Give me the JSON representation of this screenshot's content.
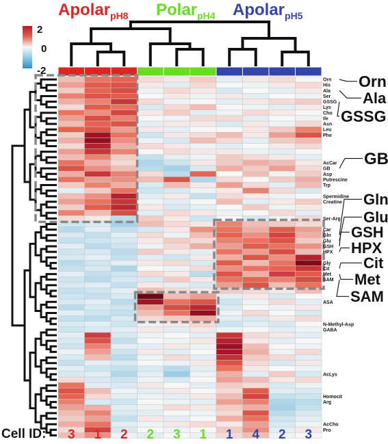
{
  "chart_data": {
    "type": "heatmap",
    "group_titles": [
      {
        "main": "Apolar",
        "sub": "pH8",
        "color": "#e02424"
      },
      {
        "main": "Polar",
        "sub": "pH4",
        "color": "#66dd22"
      },
      {
        "main": "Apolar",
        "sub": "pH5",
        "color": "#3344aa"
      }
    ],
    "column_group_index": [
      0,
      0,
      0,
      1,
      1,
      1,
      2,
      2,
      2,
      2
    ],
    "colorbar": {
      "ticks": [
        "2",
        "0",
        "-2"
      ],
      "max": 2,
      "min": -2
    },
    "cell_id_label": "Cell ID:",
    "cell_ids": [
      "3",
      "1",
      "2",
      "2",
      "3",
      "1",
      "1",
      "4",
      "2",
      "3"
    ],
    "row_labels": [
      {
        "row": 0,
        "text": "Orn"
      },
      {
        "row": 1,
        "text": "His"
      },
      {
        "row": 2,
        "text": "Ala"
      },
      {
        "row": 3,
        "text": "Ser"
      },
      {
        "row": 4,
        "text": "GSSG"
      },
      {
        "row": 5,
        "text": "Lys"
      },
      {
        "row": 6,
        "text": "Cho"
      },
      {
        "row": 7,
        "text": "Ile"
      },
      {
        "row": 8,
        "text": "Asn"
      },
      {
        "row": 9,
        "text": "Leu"
      },
      {
        "row": 10,
        "text": "Phe"
      },
      {
        "row": 15,
        "text": "AcCar"
      },
      {
        "row": 16,
        "text": "GB"
      },
      {
        "row": 17,
        "text": "Asp"
      },
      {
        "row": 18,
        "text": "Putrescine"
      },
      {
        "row": 19,
        "text": "Trp"
      },
      {
        "row": 21,
        "text": "Spermidine"
      },
      {
        "row": 22,
        "text": "Creatine"
      },
      {
        "row": 25,
        "text": "Ser-Arg"
      },
      {
        "row": 27,
        "text": "Car"
      },
      {
        "row": 28,
        "text": "Gln"
      },
      {
        "row": 29,
        "text": "Glu"
      },
      {
        "row": 30,
        "text": "GSH"
      },
      {
        "row": 31,
        "text": "HPX"
      },
      {
        "row": 33,
        "text": "Gly"
      },
      {
        "row": 34,
        "text": "Cit"
      },
      {
        "row": 35,
        "text": "Met"
      },
      {
        "row": 36,
        "text": "SAM"
      },
      {
        "row": 40,
        "text": "ASA"
      },
      {
        "row": 44,
        "text": "N-Methyl-Asp"
      },
      {
        "row": 45,
        "text": "GABA"
      },
      {
        "row": 53,
        "text": "AcLys"
      },
      {
        "row": 57,
        "text": "Homocit"
      },
      {
        "row": 58,
        "text": "Arg"
      },
      {
        "row": 62,
        "text": "AcCho"
      },
      {
        "row": 63,
        "text": "Pro"
      }
    ],
    "callouts": [
      {
        "text": "Orn",
        "row": 0
      },
      {
        "text": "Ala",
        "row": 2
      },
      {
        "text": "GSSG",
        "row": 4
      },
      {
        "text": "GB",
        "row": 16
      },
      {
        "text": "Gln",
        "row": 28
      },
      {
        "text": "Glu",
        "row": 29
      },
      {
        "text": "GSH",
        "row": 30
      },
      {
        "text": "HPX",
        "row": 31
      },
      {
        "text": "Cit",
        "row": 34
      },
      {
        "text": "Met",
        "row": 35
      },
      {
        "text": "SAM",
        "row": 36
      }
    ],
    "highlight_boxes": [
      {
        "rows": [
          0,
          25
        ],
        "cols": [
          0,
          2
        ]
      },
      {
        "rows": [
          26,
          37
        ],
        "cols": [
          6,
          9
        ]
      },
      {
        "rows": [
          39,
          43
        ],
        "cols": [
          3,
          5
        ]
      }
    ],
    "values": [
      [
        0.4,
        0.9,
        1.0,
        0.2,
        0.1,
        0.3,
        -0.2,
        0.1,
        0.2,
        0.0
      ],
      [
        0.6,
        1.1,
        1.2,
        0.1,
        -0.2,
        0.2,
        0.0,
        -0.1,
        0.1,
        0.2
      ],
      [
        0.3,
        1.0,
        1.3,
        -0.1,
        0.2,
        0.1,
        -0.3,
        0.0,
        -0.2,
        0.1
      ],
      [
        0.8,
        1.2,
        1.1,
        0.0,
        0.1,
        -0.1,
        0.1,
        -0.2,
        0.0,
        -0.1
      ],
      [
        0.5,
        0.8,
        1.6,
        0.2,
        -0.1,
        0.0,
        -0.2,
        0.1,
        0.2,
        0.3
      ],
      [
        0.2,
        1.1,
        0.9,
        -0.3,
        0.2,
        0.4,
        0.0,
        -0.1,
        -0.2,
        0.1
      ],
      [
        0.9,
        0.7,
        1.4,
        0.1,
        0.3,
        -0.2,
        -0.1,
        0.2,
        0.1,
        0.0
      ],
      [
        0.6,
        1.3,
        0.8,
        0.0,
        -0.1,
        0.2,
        0.2,
        -0.2,
        0.0,
        -0.1
      ],
      [
        0.4,
        1.0,
        1.2,
        -0.2,
        0.1,
        0.1,
        -0.3,
        0.1,
        -0.1,
        0.2
      ],
      [
        1.0,
        1.2,
        0.6,
        0.1,
        -0.2,
        0.0,
        0.0,
        0.1,
        0.3,
        0.8
      ],
      [
        0.3,
        2.2,
        0.9,
        -0.4,
        0.1,
        0.2,
        0.4,
        0.1,
        0.6,
        1.2
      ],
      [
        0.5,
        2.4,
        0.7,
        -0.1,
        -0.3,
        0.4,
        0.2,
        -0.2,
        0.3,
        0.4
      ],
      [
        0.2,
        1.9,
        0.5,
        0.2,
        0.1,
        -0.1,
        -0.2,
        0.0,
        0.1,
        0.2
      ],
      [
        0.6,
        1.6,
        0.8,
        0.0,
        0.2,
        0.1,
        0.1,
        -0.1,
        -0.2,
        0.0
      ],
      [
        0.4,
        0.8,
        0.3,
        -0.5,
        -0.2,
        -0.1,
        0.3,
        0.2,
        0.1,
        -0.2
      ],
      [
        0.9,
        0.5,
        0.2,
        -0.7,
        -0.4,
        0.1,
        0.3,
        0.5,
        0.4,
        0.1
      ],
      [
        1.2,
        0.7,
        0.4,
        -0.6,
        -0.8,
        -0.3,
        0.5,
        0.3,
        0.6,
        0.2
      ],
      [
        0.5,
        1.6,
        0.8,
        0.2,
        -0.6,
        1.0,
        0.0,
        0.4,
        -0.1,
        0.3
      ],
      [
        0.9,
        0.6,
        0.7,
        0.4,
        1.2,
        -0.7,
        0.2,
        0.0,
        0.3,
        0.5
      ],
      [
        0.3,
        0.8,
        0.5,
        -0.3,
        0.4,
        0.1,
        0.6,
        0.2,
        -0.2,
        0.4
      ],
      [
        -0.2,
        0.3,
        0.9,
        -0.4,
        -0.3,
        -0.1,
        0.1,
        0.8,
        0.2,
        -0.3
      ],
      [
        0.4,
        0.7,
        1.9,
        -0.2,
        0.1,
        -0.5,
        0.2,
        0.1,
        -0.1,
        0.0
      ],
      [
        0.6,
        0.9,
        1.6,
        -0.1,
        -0.2,
        0.0,
        0.4,
        -0.2,
        0.1,
        0.3
      ],
      [
        0.3,
        1.1,
        1.8,
        0.1,
        -0.3,
        -0.2,
        0.0,
        0.3,
        -0.1,
        0.1
      ],
      [
        0.8,
        0.4,
        1.3,
        -0.2,
        0.2,
        0.1,
        -0.1,
        0.0,
        0.2,
        -0.2
      ],
      [
        0.2,
        0.1,
        -0.6,
        0.3,
        0.1,
        -0.4,
        0.0,
        -0.3,
        -0.1,
        0.2
      ],
      [
        -0.4,
        -0.3,
        -0.8,
        0.4,
        0.2,
        0.1,
        0.8,
        0.4,
        0.3,
        0.2
      ],
      [
        -0.6,
        -0.2,
        -0.5,
        -0.3,
        0.1,
        0.7,
        0.9,
        0.5,
        1.1,
        0.6
      ],
      [
        -0.3,
        -0.5,
        -0.2,
        0.2,
        -0.1,
        0.4,
        1.0,
        0.7,
        1.4,
        0.5
      ],
      [
        -0.5,
        -0.4,
        -0.3,
        0.1,
        0.3,
        0.2,
        0.8,
        0.9,
        1.2,
        0.3
      ],
      [
        -0.2,
        -0.6,
        -0.4,
        -0.1,
        0.2,
        0.5,
        0.6,
        1.1,
        0.9,
        0.7
      ],
      [
        -0.4,
        -0.3,
        -0.6,
        0.3,
        0.1,
        -0.2,
        0.9,
        0.6,
        1.3,
        0.4
      ],
      [
        -0.3,
        -0.2,
        -0.5,
        -0.2,
        -0.4,
        0.1,
        0.5,
        1.2,
        0.7,
        1.9
      ],
      [
        -0.6,
        -0.4,
        -0.2,
        0.1,
        0.2,
        -0.3,
        1.1,
        0.4,
        0.9,
        2.6
      ],
      [
        -0.5,
        -0.3,
        -0.7,
        0.0,
        -0.1,
        0.2,
        0.7,
        0.9,
        1.0,
        1.6
      ],
      [
        -0.2,
        -0.5,
        -0.4,
        0.2,
        0.1,
        -0.6,
        1.2,
        0.5,
        1.5,
        1.1
      ],
      [
        -0.4,
        -0.6,
        -0.3,
        -0.3,
        0.3,
        0.1,
        0.9,
        1.0,
        0.8,
        1.3
      ],
      [
        -0.3,
        -0.2,
        -0.5,
        0.1,
        -0.2,
        -0.3,
        0.6,
        1.2,
        0.4,
        0.9
      ],
      [
        -0.5,
        -0.4,
        -0.2,
        0.4,
        0.2,
        0.1,
        0.3,
        0.2,
        0.1,
        0.4
      ],
      [
        -0.4,
        -0.5,
        -0.3,
        2.8,
        0.4,
        0.6,
        -0.2,
        0.1,
        -0.3,
        0.0
      ],
      [
        -0.3,
        -0.2,
        -0.6,
        2.2,
        0.9,
        1.2,
        -0.4,
        -0.1,
        0.2,
        -0.2
      ],
      [
        -0.6,
        -0.3,
        -0.4,
        0.6,
        1.3,
        1.8,
        -0.3,
        0.0,
        -0.1,
        0.1
      ],
      [
        -0.2,
        -0.4,
        -0.5,
        0.4,
        0.9,
        2.4,
        -0.1,
        0.2,
        0.0,
        -0.3
      ],
      [
        -0.5,
        -0.6,
        -0.3,
        0.2,
        0.3,
        0.5,
        -0.2,
        -0.3,
        0.1,
        0.2
      ],
      [
        -0.3,
        -0.2,
        -0.4,
        -0.1,
        0.1,
        0.2,
        -0.4,
        -0.2,
        -0.3,
        0.0
      ],
      [
        -0.4,
        -0.3,
        -0.2,
        0.1,
        -0.2,
        0.1,
        -0.1,
        0.0,
        -0.2,
        -0.1
      ],
      [
        -0.2,
        1.5,
        -0.3,
        -0.1,
        0.0,
        -0.2,
        1.6,
        0.2,
        0.1,
        -0.2
      ],
      [
        -0.3,
        1.2,
        -0.5,
        0.0,
        -0.1,
        0.1,
        1.9,
        0.1,
        -0.2,
        0.0
      ],
      [
        -0.4,
        0.8,
        -0.2,
        -0.2,
        0.1,
        -0.1,
        2.3,
        0.4,
        0.0,
        -0.1
      ],
      [
        -0.1,
        0.6,
        -0.4,
        0.1,
        -0.2,
        0.0,
        2.1,
        0.5,
        -0.1,
        0.2
      ],
      [
        -0.3,
        0.4,
        -0.6,
        -0.1,
        0.2,
        -0.2,
        1.7,
        0.3,
        0.2,
        -0.2
      ],
      [
        -0.5,
        -0.2,
        -0.3,
        0.0,
        -0.1,
        0.1,
        1.2,
        0.2,
        -0.3,
        0.1
      ],
      [
        -0.2,
        -0.4,
        -0.5,
        -0.3,
        -0.6,
        -0.2,
        0.9,
        0.1,
        0.0,
        -0.1
      ],
      [
        -0.3,
        -0.2,
        -0.7,
        -0.2,
        -0.9,
        -0.1,
        0.5,
        -0.2,
        0.3,
        -0.3
      ],
      [
        0.2,
        -0.3,
        -0.4,
        -0.1,
        -0.3,
        0.0,
        0.6,
        0.4,
        0.1,
        0.2
      ],
      [
        0.9,
        -0.2,
        -0.3,
        0.1,
        0.0,
        -0.2,
        0.3,
        0.2,
        -0.3,
        -0.1
      ],
      [
        1.2,
        0.4,
        -0.1,
        -0.2,
        0.1,
        0.0,
        0.2,
        1.1,
        -0.2,
        -0.3
      ],
      [
        1.0,
        0.2,
        -0.2,
        -0.1,
        -0.2,
        0.1,
        0.4,
        1.4,
        -0.5,
        -0.4
      ],
      [
        0.8,
        -0.3,
        -0.4,
        0.0,
        -0.1,
        -0.2,
        0.6,
        0.8,
        -0.7,
        -0.6
      ],
      [
        0.6,
        0.5,
        -0.2,
        -0.1,
        0.2,
        0.1,
        0.3,
        0.5,
        -0.8,
        -0.5
      ],
      [
        0.4,
        0.8,
        -0.3,
        -0.2,
        0.0,
        -0.1,
        0.2,
        1.2,
        -0.6,
        -0.3
      ],
      [
        0.3,
        0.6,
        -0.5,
        0.1,
        -0.2,
        0.0,
        0.5,
        0.9,
        -0.4,
        -0.2
      ],
      [
        0.5,
        0.9,
        -0.2,
        -0.1,
        0.1,
        0.2,
        0.1,
        0.6,
        -0.3,
        -0.1
      ],
      [
        0.2,
        1.4,
        -0.3,
        0.0,
        -0.1,
        0.0,
        0.3,
        0.7,
        -0.2,
        0.1
      ],
      [
        0.4,
        0.7,
        -0.1,
        -0.2,
        0.0,
        -0.1,
        0.2,
        0.4,
        -0.1,
        0.0
      ]
    ]
  }
}
